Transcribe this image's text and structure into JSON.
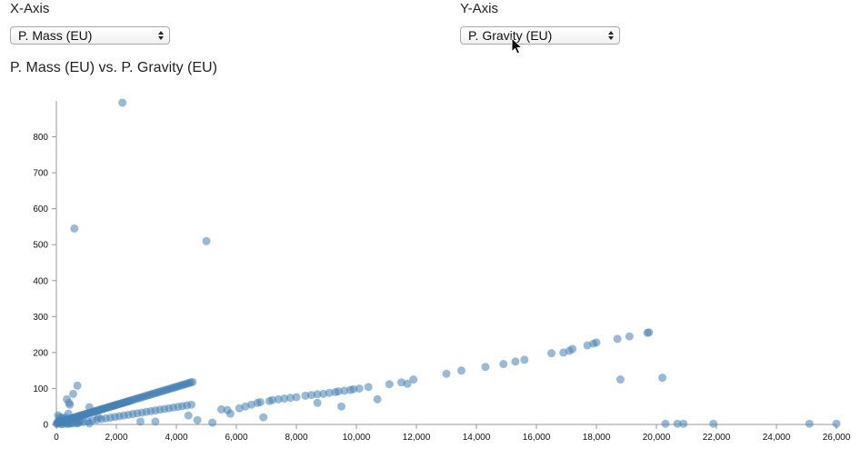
{
  "controls": {
    "x_axis": {
      "label": "X-Axis",
      "selected": "P. Mass (EU)"
    },
    "y_axis": {
      "label": "Y-Axis",
      "selected": "P. Gravity (EU)"
    }
  },
  "colors": {
    "point": "#4682b4",
    "axis": "#999999"
  },
  "chart_data": {
    "type": "scatter",
    "title": "P. Mass (EU) vs. P. Gravity (EU)",
    "xlabel": "",
    "ylabel": "",
    "xlim": [
      0,
      26000
    ],
    "ylim": [
      0,
      900
    ],
    "x_ticks": [
      0,
      2000,
      4000,
      6000,
      8000,
      10000,
      12000,
      14000,
      16000,
      18000,
      20000,
      22000,
      24000,
      26000
    ],
    "x_tick_labels": [
      "0",
      "2,000",
      "4,000",
      "6,000",
      "8,000",
      "10,000",
      "12,000",
      "14,000",
      "16,000",
      "18,000",
      "20,000",
      "22,000",
      "24,000",
      "26,000"
    ],
    "y_ticks": [
      0,
      100,
      200,
      300,
      400,
      500,
      600,
      700,
      800
    ],
    "y_tick_labels": [
      "0",
      "100",
      "200",
      "300",
      "400",
      "500",
      "600",
      "700",
      "800"
    ],
    "grid": false,
    "series": [
      {
        "x": [
          10,
          30,
          60,
          90,
          120,
          150,
          180,
          220,
          260,
          300,
          340,
          380,
          420,
          460,
          500,
          540,
          580,
          620,
          660,
          700,
          740,
          780,
          820,
          860,
          900,
          940,
          980,
          1020,
          1060,
          1100,
          1140,
          1180,
          1220,
          1260,
          1300,
          1340,
          1380,
          1420,
          1460,
          1500,
          1540,
          1580,
          1620,
          1660,
          1700,
          1740,
          1780,
          1820,
          1860,
          1900,
          1940,
          1980,
          2020,
          2060,
          2100,
          2140,
          2180,
          2220,
          2260,
          2300,
          2340,
          2380,
          2420,
          2460,
          2500,
          2560,
          2620,
          2680,
          2740,
          2800,
          2860,
          2920,
          2980,
          3040,
          3100,
          3160,
          3220,
          3280,
          3340,
          3400,
          3460,
          3520,
          3580,
          3640,
          3700,
          3760,
          3820,
          3880,
          3940,
          4000,
          4060,
          4120,
          4180,
          4240,
          4300,
          4360,
          4420,
          4480,
          4540,
          150,
          220,
          350,
          400,
          450,
          520,
          600,
          700,
          780,
          900,
          1050,
          1200,
          1350,
          1500,
          1650,
          1800,
          1950,
          2100,
          2250,
          2400,
          2550,
          2700,
          2850,
          3000,
          3150,
          3300,
          3450,
          3600,
          3750,
          3900,
          4050,
          4200,
          4350,
          4500,
          50,
          100,
          200,
          300,
          400,
          60,
          120,
          250,
          500,
          700,
          350,
          420,
          560,
          700,
          300,
          800,
          1100,
          2200,
          600,
          5000,
          400,
          450,
          1100,
          1400,
          2800,
          3300,
          4400,
          4700,
          5200,
          5500,
          5700,
          5800,
          6100,
          6300,
          6500,
          6700,
          6800,
          7100,
          7200,
          7400,
          7600,
          7800,
          8000,
          8300,
          8500,
          8700,
          8900,
          9100,
          9300,
          9400,
          9600,
          9800,
          9900,
          10100,
          10400,
          11100,
          11500,
          11700,
          11900,
          6900,
          8700,
          9500,
          10700,
          13000,
          13500,
          14300,
          14900,
          15300,
          15600,
          16500,
          16900,
          17100,
          17200,
          17700,
          17900,
          18000,
          18700,
          19100,
          19700,
          19750,
          18800,
          20200,
          20300,
          20700,
          20900,
          21900,
          25100,
          26000
        ],
        "y": [
          2,
          3,
          4,
          5,
          6,
          7,
          8,
          9,
          11,
          12,
          13,
          14,
          15,
          16,
          17,
          18,
          19,
          20,
          21,
          22,
          23,
          24,
          25,
          26,
          27,
          28,
          29,
          30,
          31,
          32,
          33,
          34,
          35,
          36,
          37,
          38,
          39,
          40,
          41,
          42,
          43,
          44,
          45,
          46,
          47,
          48,
          49,
          50,
          51,
          52,
          53,
          54,
          55,
          56,
          57,
          58,
          59,
          60,
          61,
          62,
          63,
          64,
          65,
          66,
          67,
          69,
          70,
          72,
          73,
          75,
          76,
          78,
          79,
          81,
          82,
          84,
          85,
          87,
          88,
          90,
          91,
          93,
          94,
          96,
          97,
          99,
          100,
          102,
          103,
          105,
          106,
          108,
          109,
          111,
          112,
          114,
          115,
          117,
          118,
          1,
          1,
          2,
          2,
          3,
          3,
          4,
          5,
          6,
          7,
          9,
          11,
          13,
          15,
          17,
          19,
          21,
          23,
          25,
          27,
          29,
          31,
          33,
          35,
          37,
          39,
          41,
          43,
          45,
          47,
          49,
          51,
          53,
          55,
          8,
          12,
          18,
          5,
          10,
          25,
          20,
          6,
          15,
          3,
          70,
          60,
          85,
          108,
          20,
          12,
          48,
          895,
          545,
          510,
          30,
          55,
          3,
          20,
          8,
          8,
          25,
          12,
          5,
          42,
          40,
          30,
          45,
          50,
          55,
          60,
          62,
          65,
          68,
          70,
          72,
          74,
          76,
          80,
          82,
          84,
          85,
          88,
          90,
          92,
          94,
          96,
          98,
          100,
          104,
          112,
          117,
          113,
          125,
          20,
          60,
          50,
          70,
          141,
          150,
          160,
          168,
          175,
          180,
          198,
          200,
          205,
          210,
          220,
          225,
          228,
          238,
          245,
          255,
          256,
          125,
          130,
          2,
          2,
          2,
          2,
          2,
          2
        ]
      }
    ]
  }
}
